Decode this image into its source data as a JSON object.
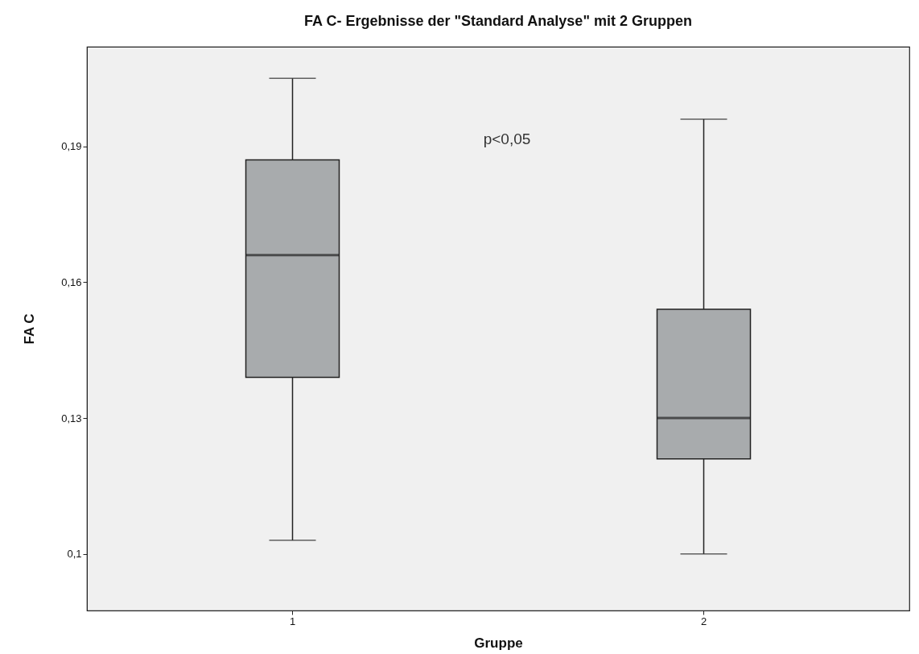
{
  "chart_data": {
    "type": "box",
    "title": "FA C- Ergebnisse der \"Standard Analyse\" mit 2 Gruppen",
    "xlabel": "Gruppe",
    "ylabel": "FA C",
    "categories": [
      "1",
      "2"
    ],
    "boxes": [
      {
        "low": 0.103,
        "q1": 0.139,
        "median": 0.166,
        "q3": 0.187,
        "high": 0.205
      },
      {
        "low": 0.1,
        "q1": 0.121,
        "median": 0.13,
        "q3": 0.154,
        "high": 0.196
      }
    ],
    "color": "#a8abad",
    "ylim": [
      0.0875,
      0.212
    ],
    "yticks": [
      {
        "value": 0.1,
        "label": "0,1"
      },
      {
        "value": 0.13,
        "label": "0,13"
      },
      {
        "value": 0.16,
        "label": "0,16"
      },
      {
        "value": 0.19,
        "label": "0,19"
      }
    ],
    "grid": false,
    "annotations": [
      "p<0,05"
    ]
  }
}
